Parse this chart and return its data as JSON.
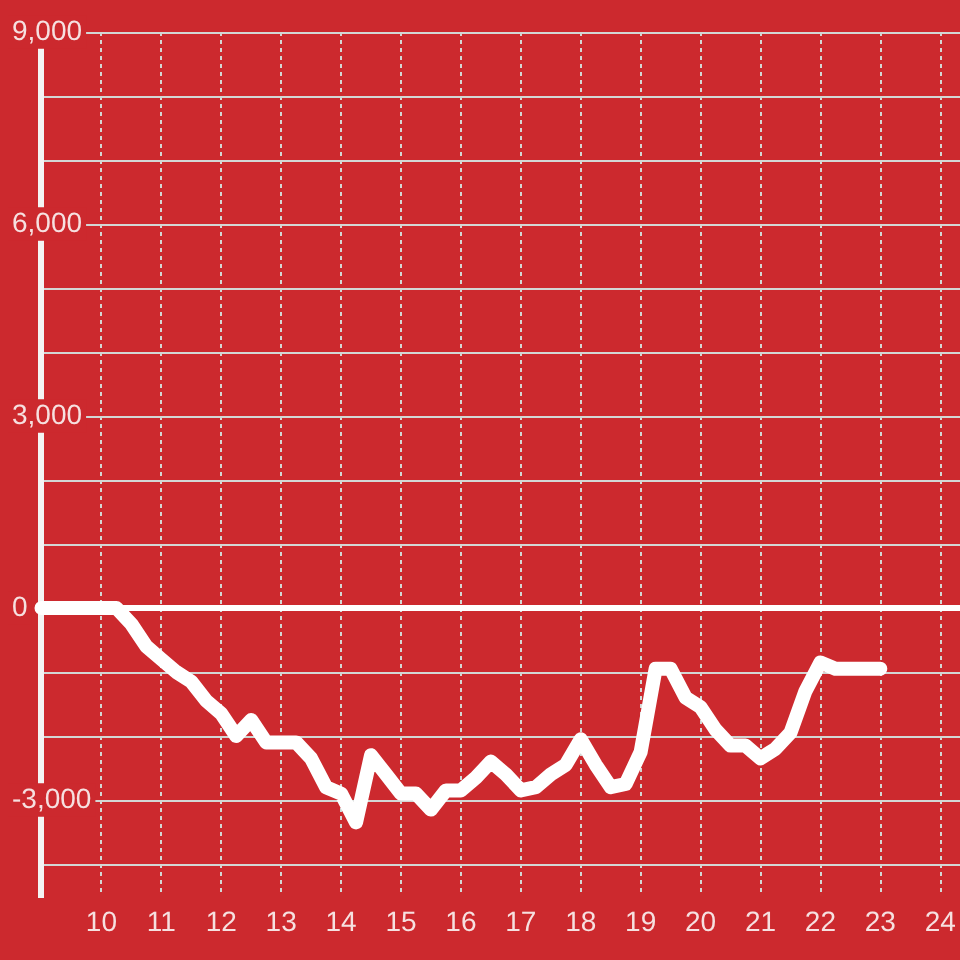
{
  "chart_data": {
    "type": "line",
    "x": [
      9,
      9.25,
      9.5,
      9.75,
      10,
      10.25,
      10.5,
      10.75,
      11,
      11.25,
      11.5,
      11.75,
      12,
      12.25,
      12.5,
      12.75,
      13,
      13.25,
      13.5,
      13.75,
      14,
      14.25,
      14.5,
      14.75,
      15,
      15.25,
      15.5,
      15.75,
      16,
      16.25,
      16.5,
      16.75,
      17,
      17.25,
      17.5,
      17.75,
      18,
      18.25,
      18.5,
      18.75,
      19,
      19.25,
      19.5,
      19.75,
      20,
      20.25,
      20.5,
      20.75,
      21,
      21.25,
      21.5,
      21.75,
      22,
      22.25,
      22.5,
      22.75,
      23
    ],
    "values": [
      0,
      0,
      0,
      0,
      0,
      0,
      -250,
      -600,
      -800,
      -1000,
      -1150,
      -1450,
      -1650,
      -2000,
      -1750,
      -2100,
      -2100,
      -2100,
      -2350,
      -2800,
      -2900,
      -3350,
      -2300,
      -2600,
      -2900,
      -2900,
      -3150,
      -2850,
      -2850,
      -2650,
      -2400,
      -2600,
      -2850,
      -2800,
      -2600,
      -2450,
      -2050,
      -2450,
      -2800,
      -2750,
      -2250,
      -950,
      -950,
      -1400,
      -1550,
      -1900,
      -2150,
      -2150,
      -2350,
      -2200,
      -1950,
      -1300,
      -850,
      -950,
      -950,
      -950,
      -950
    ],
    "color": "#ffffff",
    "line_style": "solid",
    "xlim": [
      9,
      24.33
    ],
    "xticks": [
      10,
      11,
      12,
      13,
      14,
      15,
      16,
      17,
      18,
      19,
      20,
      21,
      22,
      23,
      24
    ],
    "ylim": [
      -4500,
      9000
    ],
    "yticks": [
      {
        "value": -4000,
        "label": null
      },
      {
        "value": -3000,
        "label": "-3,000"
      },
      {
        "value": -2000,
        "label": null
      },
      {
        "value": -1000,
        "label": null
      },
      0,
      {
        "value": 1000,
        "label": null
      },
      {
        "value": 2000,
        "label": null
      },
      {
        "value": 3000,
        "label": "3,000"
      },
      {
        "value": 4000,
        "label": null
      },
      {
        "value": 5000,
        "label": null
      },
      {
        "value": 6000,
        "label": "6,000"
      },
      {
        "value": 7000,
        "label": null
      },
      {
        "value": 8000,
        "label": null
      },
      {
        "value": 9000,
        "label": "9,000"
      }
    ],
    "grid": true,
    "ref_lines": [
      {
        "axis": "y",
        "value": 0,
        "color": "#ffffff"
      }
    ]
  }
}
